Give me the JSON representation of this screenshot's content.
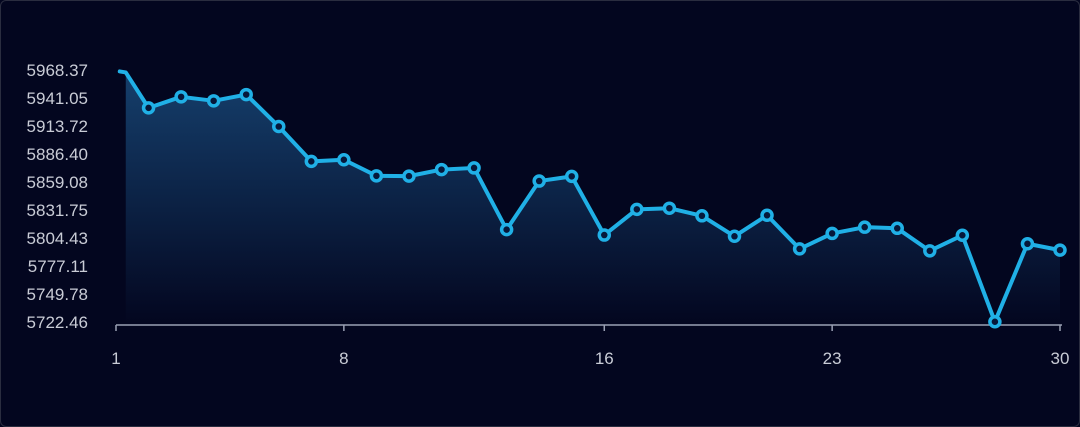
{
  "chart_data": {
    "type": "area",
    "title": "",
    "xlabel": "",
    "ylabel": "",
    "x_ticks": [
      "1",
      "8",
      "16",
      "23",
      "30"
    ],
    "y_ticks": [
      "5968.37",
      "5941.05",
      "5913.72",
      "5886.40",
      "5859.08",
      "5831.75",
      "5804.43",
      "5777.11",
      "5749.78",
      "5722.46"
    ],
    "xlim": [
      1,
      30
    ],
    "ylim": [
      5722.46,
      5968.37
    ],
    "grid": false,
    "x": [
      1.3,
      2,
      3,
      4,
      5,
      6,
      7,
      8,
      9,
      10,
      11,
      12,
      13,
      14,
      15,
      16,
      17,
      18,
      19,
      20,
      21,
      22,
      23,
      24,
      25,
      26,
      27,
      28,
      29,
      30
    ],
    "values": [
      5966.0,
      5931.4,
      5942.2,
      5938.3,
      5944.4,
      5913.2,
      5879.2,
      5880.8,
      5865.1,
      5864.8,
      5871.2,
      5872.8,
      5812.6,
      5860.0,
      5864.6,
      5807.3,
      5832.4,
      5833.5,
      5826.1,
      5806.1,
      5826.6,
      5793.8,
      5808.9,
      5815.0,
      5813.9,
      5791.9,
      5807.1,
      5722.7,
      5798.8,
      5792.6
    ],
    "colors": {
      "line": "#20b0e6",
      "marker_fill": "#06183a",
      "area_top": "#153f6c",
      "area_bottom": "#03061f",
      "axis": "#9aa0b4",
      "text": "#c9ccd6",
      "background": "#03061f"
    }
  }
}
